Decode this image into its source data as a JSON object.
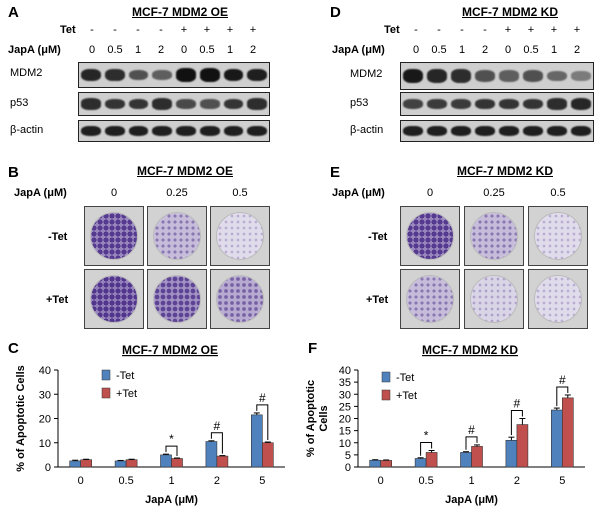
{
  "panels": {
    "A": {
      "letter": "A",
      "title": "MCF-7 MDM2 OE",
      "tet_label": "Tet",
      "japa_label": "JapA (μM)",
      "tet": [
        "-",
        "-",
        "-",
        "-",
        "+",
        "+",
        "+",
        "+"
      ],
      "japa": [
        "0",
        "0.5",
        "1",
        "2",
        "0",
        "0.5",
        "1",
        "2"
      ],
      "bands": [
        "MDM2",
        "p53",
        "β-actin"
      ],
      "intensity": {
        "MDM2": [
          0.85,
          0.8,
          0.55,
          0.45,
          1.0,
          1.0,
          0.95,
          0.9
        ],
        "p53": [
          0.8,
          0.75,
          0.75,
          0.8,
          0.6,
          0.55,
          0.75,
          0.8
        ],
        "β-actin": [
          0.9,
          0.9,
          0.9,
          0.9,
          0.9,
          0.9,
          0.9,
          0.9
        ]
      }
    },
    "D": {
      "letter": "D",
      "title": "MCF-7 MDM2 KD",
      "tet_label": "Tet",
      "japa_label": "JapA (μM)",
      "tet": [
        "-",
        "-",
        "-",
        "-",
        "+",
        "+",
        "+",
        "+"
      ],
      "japa": [
        "0",
        "0.5",
        "1",
        "2",
        "0",
        "0.5",
        "1",
        "2"
      ],
      "bands": [
        "MDM2",
        "p53",
        "β-actin"
      ],
      "intensity": {
        "MDM2": [
          0.95,
          0.85,
          0.8,
          0.55,
          0.45,
          0.55,
          0.4,
          0.25
        ],
        "p53": [
          0.65,
          0.7,
          0.7,
          0.75,
          0.75,
          0.75,
          0.8,
          0.85
        ],
        "β-actin": [
          0.9,
          0.9,
          0.9,
          0.9,
          0.9,
          0.9,
          0.9,
          0.9
        ]
      }
    },
    "B": {
      "letter": "B",
      "title": "MCF-7 MDM2 OE",
      "japa_label": "JapA (μM)",
      "conc": [
        "0",
        "0.25",
        "0.5"
      ],
      "rows": [
        "-Tet",
        "+Tet"
      ],
      "density": [
        [
          0.85,
          0.35,
          0.05
        ],
        [
          0.9,
          0.75,
          0.5
        ]
      ]
    },
    "E": {
      "letter": "E",
      "title": "MCF-7 MDM2 KD",
      "japa_label": "JapA (μM)",
      "conc": [
        "0",
        "0.25",
        "0.5"
      ],
      "rows": [
        "-Tet",
        "+Tet"
      ],
      "density": [
        [
          0.85,
          0.35,
          0.05
        ],
        [
          0.35,
          0.12,
          0.05
        ]
      ]
    }
  },
  "colors": {
    "blue": "#4f81bd",
    "red": "#c0504d",
    "stain": "#4b2c8c"
  },
  "chart_data": [
    {
      "type": "bar",
      "letter": "C",
      "title": "MCF-7 MDM2 OE",
      "xlabel": "JapA (μM)",
      "ylabel": "% of Apoptotic Cells",
      "categories": [
        "0",
        "0.5",
        "1",
        "2",
        "5"
      ],
      "ylim": [
        0,
        40
      ],
      "yticks": [
        "0",
        "10",
        "20",
        "30",
        "40"
      ],
      "series": [
        {
          "name": "-Tet",
          "values": [
            2.5,
            2.5,
            5,
            10.5,
            21.5
          ],
          "err": [
            0.3,
            0.2,
            0.3,
            0.3,
            0.8
          ]
        },
        {
          "name": "+Tet",
          "values": [
            3,
            3,
            3.5,
            4.5,
            10
          ],
          "err": [
            0.2,
            0.2,
            0.2,
            0.2,
            0.3
          ]
        }
      ],
      "sig": [
        {
          "idx": 2,
          "label": "*"
        },
        {
          "idx": 3,
          "label": "#"
        },
        {
          "idx": 4,
          "label": "#"
        }
      ]
    },
    {
      "type": "bar",
      "letter": "F",
      "title": "MCF-7 MDM2 KD",
      "xlabel": "JapA (μM)",
      "ylabel": "% of Apoptotic Cells",
      "categories": [
        "0",
        "0.5",
        "1",
        "2",
        "5"
      ],
      "ylim": [
        0,
        40
      ],
      "yticks": [
        "0",
        "5",
        "10",
        "15",
        "20",
        "25",
        "30",
        "35",
        "40"
      ],
      "series": [
        {
          "name": "-Tet",
          "values": [
            2.8,
            3.5,
            6,
            11,
            23.5
          ],
          "err": [
            0.2,
            0.3,
            0.3,
            1.3,
            0.8
          ]
        },
        {
          "name": "+Tet",
          "values": [
            2.7,
            6,
            8.5,
            17.5,
            28.5
          ],
          "err": [
            0.2,
            0.8,
            0.6,
            2.5,
            1.2
          ]
        }
      ],
      "sig": [
        {
          "idx": 1,
          "label": "*"
        },
        {
          "idx": 2,
          "label": "#"
        },
        {
          "idx": 3,
          "label": "#"
        },
        {
          "idx": 4,
          "label": "#"
        }
      ]
    }
  ]
}
